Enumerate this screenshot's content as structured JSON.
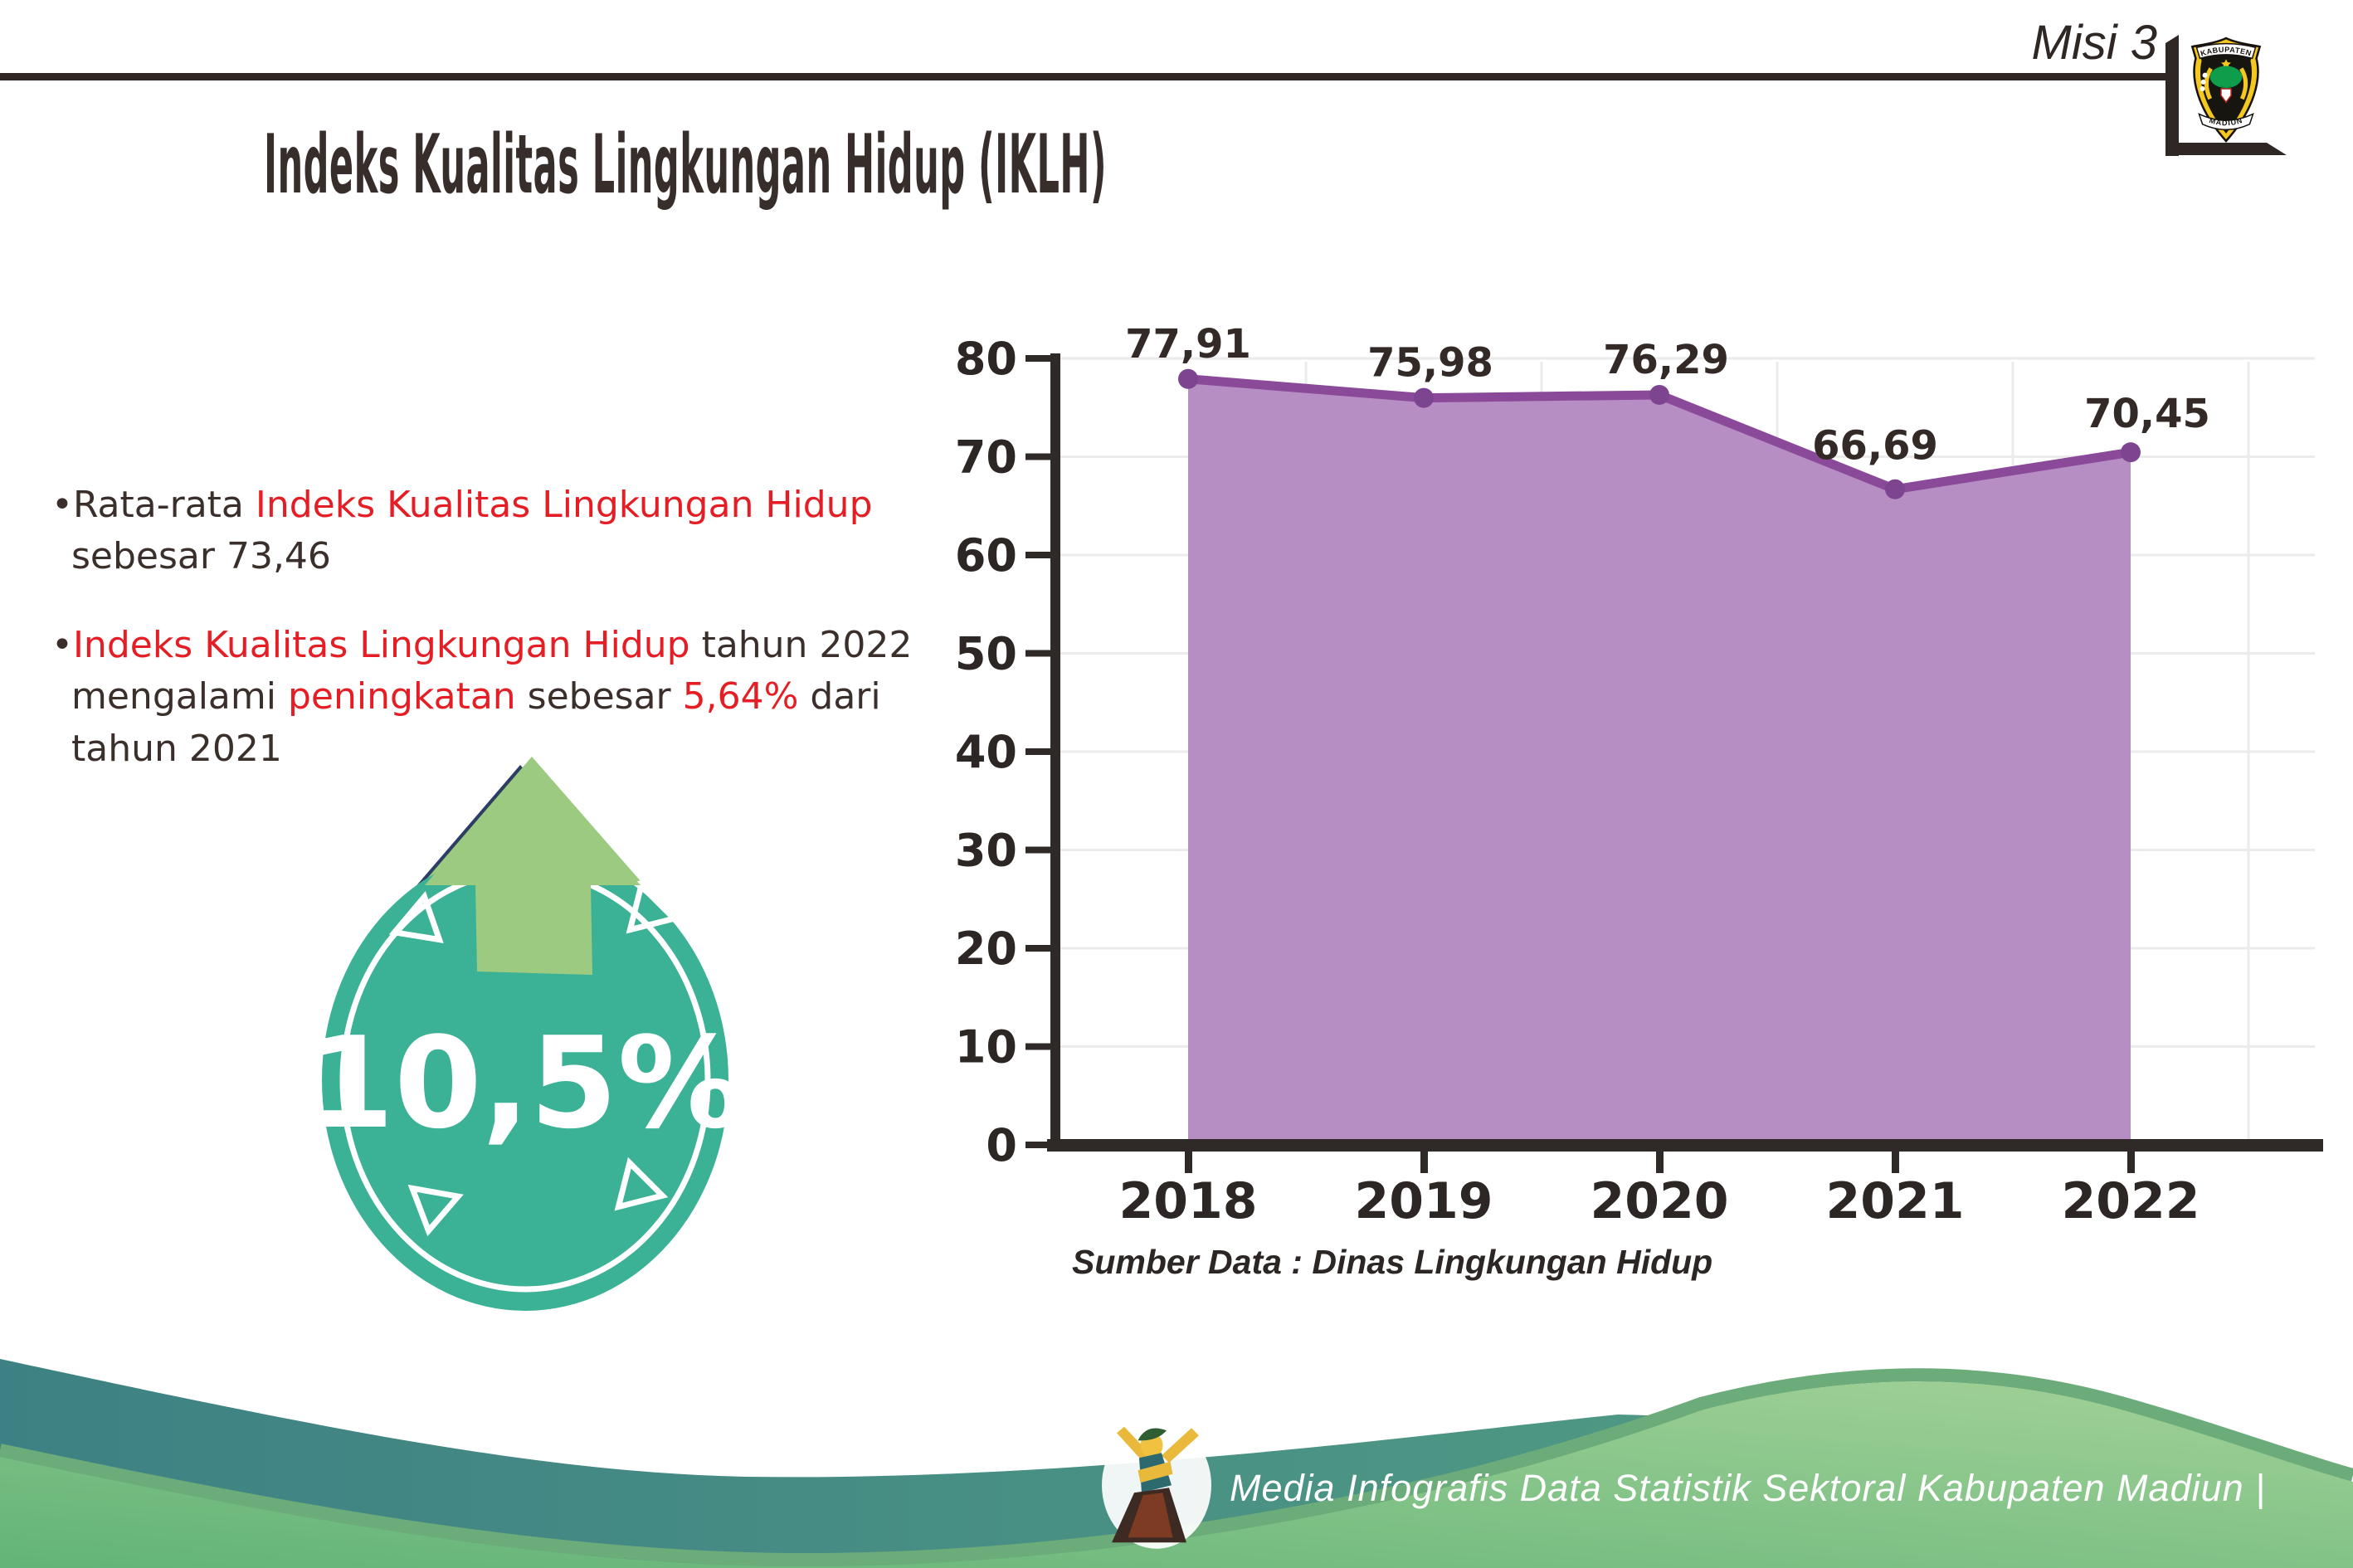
{
  "header": {
    "misi": "Misi 3",
    "logo_top": "KABUPATEN",
    "logo_bottom": "MADIUN"
  },
  "title": "Indeks Kualitas Lingkungan Hidup (IKLH)",
  "bullets": {
    "marker": "•",
    "b1": {
      "s1": "Rata-rata ",
      "s2": "Indeks Kualitas Lingkungan Hidup",
      "s3": " sebesar 73,46"
    },
    "b2": {
      "s1": "Indeks Kualitas Lingkungan Hidup",
      "s2": " tahun 2022 mengalami ",
      "s3": "peningkatan",
      "s4": " sebesar ",
      "s5": "5,64%",
      "s6": " dari tahun 2021"
    }
  },
  "badge": {
    "percent": "10,5%",
    "circle_color": "#3bb296",
    "arrow_color": "#9cca81"
  },
  "chart_data": {
    "type": "area",
    "title": "",
    "xlabel": "",
    "ylabel": "",
    "categories": [
      "2018",
      "2019",
      "2020",
      "2021",
      "2022"
    ],
    "values": [
      77.91,
      75.98,
      76.29,
      66.69,
      70.45
    ],
    "point_labels": [
      "77,91",
      "75,98",
      "76,29",
      "66,69",
      "70,45"
    ],
    "ylim": [
      0,
      80
    ],
    "yticks": [
      0,
      10,
      20,
      30,
      40,
      50,
      60,
      70,
      80
    ],
    "grid": true,
    "legend": "none",
    "source_note": "Sumber Data : Dinas Lingkungan Hidup",
    "colors": {
      "area_fill": "#b78ec3",
      "line": "#8a4a99",
      "marker": "#7d4490",
      "axis": "#2f2a27",
      "grid": "#ebebeb",
      "label": "#332a28"
    }
  },
  "footer": {
    "credit": "Media Infografis Data Statistik Sektoral Kabupaten Madiun |"
  },
  "colors": {
    "dark": "#2e2724",
    "red": "#e51e25",
    "footer_teal": "#3e8184",
    "footer_green": "#6ab97e"
  }
}
